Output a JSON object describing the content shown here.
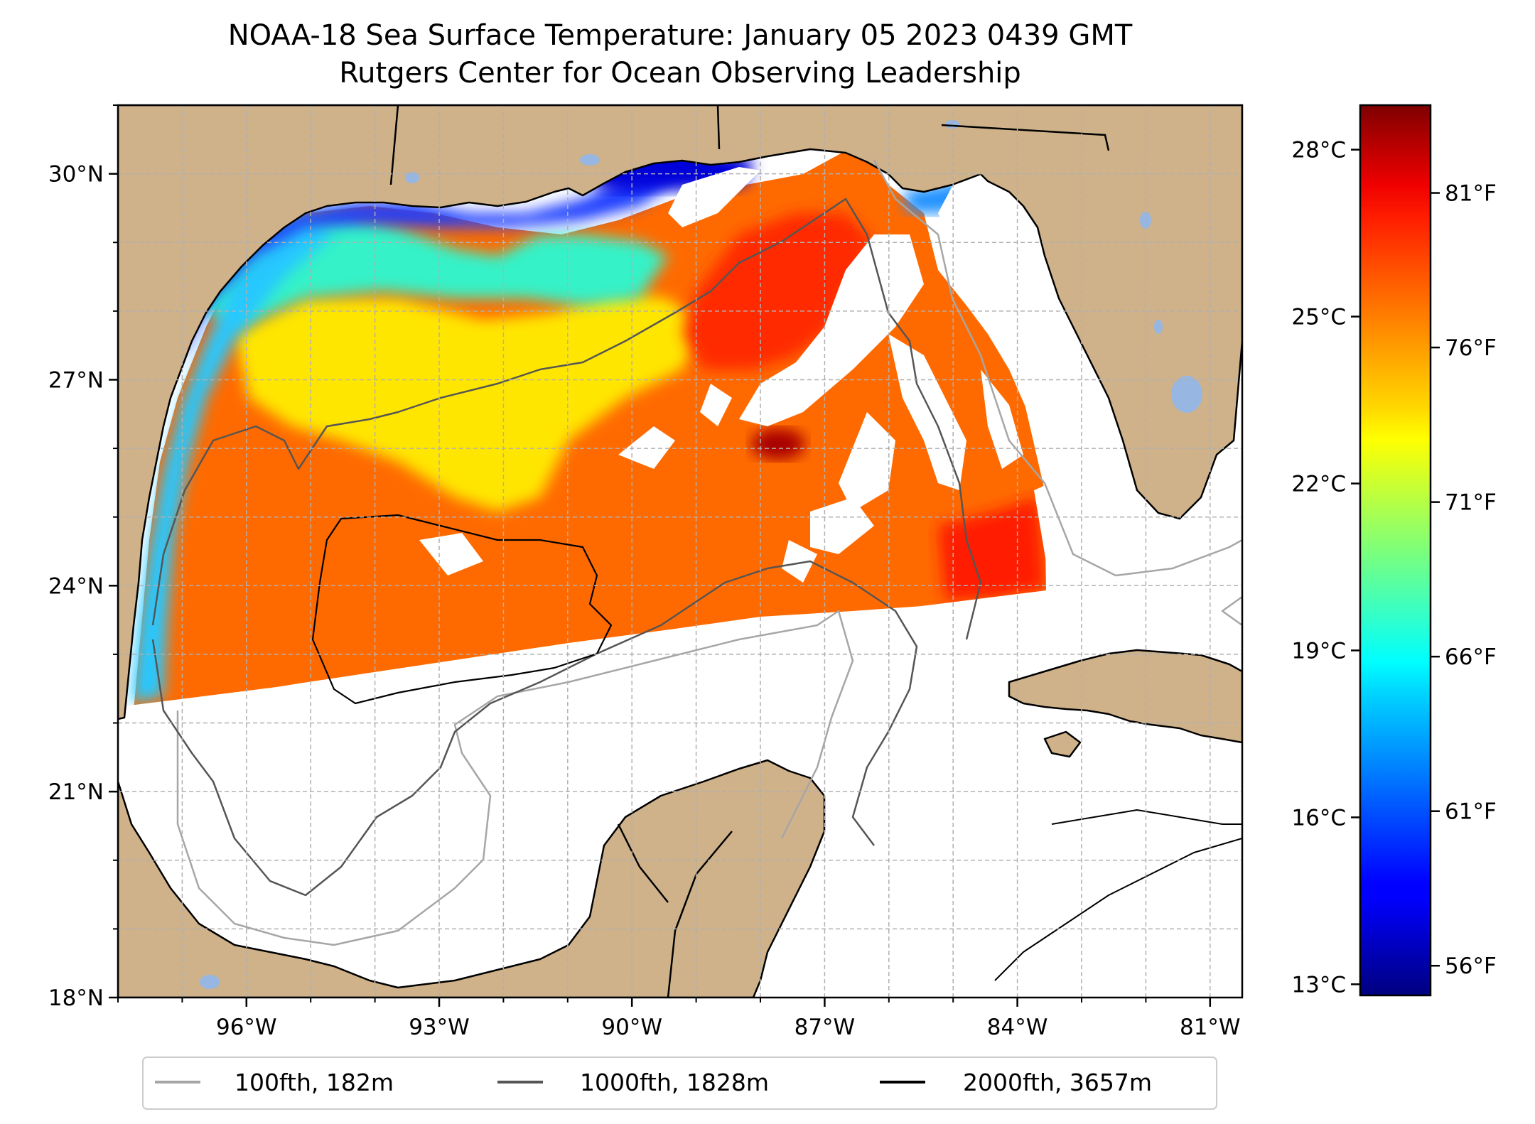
{
  "title": {
    "line1": "NOAA-18 Sea Surface Temperature: January 05 2023 0439 GMT",
    "line2": "Rutgers Center for Ocean Observing Leadership"
  },
  "map": {
    "lon_range": [
      -98.0,
      -80.5
    ],
    "lat_range": [
      18.0,
      31.0
    ],
    "lon_ticks": [
      {
        "value": -96,
        "label": "96°W"
      },
      {
        "value": -93,
        "label": "93°W"
      },
      {
        "value": -90,
        "label": "90°W"
      },
      {
        "value": -87,
        "label": "87°W"
      },
      {
        "value": -84,
        "label": "84°W"
      },
      {
        "value": -81,
        "label": "81°W"
      }
    ],
    "lat_ticks": [
      {
        "value": 18,
        "label": "18°N"
      },
      {
        "value": 21,
        "label": "21°N"
      },
      {
        "value": 24,
        "label": "24°N"
      },
      {
        "value": 27,
        "label": "27°N"
      },
      {
        "value": 30,
        "label": "30°N"
      }
    ],
    "gridlines": true,
    "land_color": "#cfb28a",
    "ocean_color": "#ffffff",
    "lake_color": "#97b6e1"
  },
  "colorbar": {
    "colormap": "jet",
    "range_c": [
      12.8,
      28.8
    ],
    "celsius_ticks": [
      {
        "value": 13,
        "label": "13°C"
      },
      {
        "value": 16,
        "label": "16°C"
      },
      {
        "value": 19,
        "label": "19°C"
      },
      {
        "value": 22,
        "label": "22°C"
      },
      {
        "value": 25,
        "label": "25°C"
      },
      {
        "value": 28,
        "label": "28°C"
      }
    ],
    "fahrenheit_ticks": [
      {
        "value": 56,
        "label": "56°F"
      },
      {
        "value": 61,
        "label": "61°F"
      },
      {
        "value": 66,
        "label": "66°F"
      },
      {
        "value": 71,
        "label": "71°F"
      },
      {
        "value": 76,
        "label": "76°F"
      },
      {
        "value": 81,
        "label": "81°F"
      }
    ]
  },
  "legend": {
    "items": [
      {
        "label": "100fth, 182m",
        "color": "#a6a6a6"
      },
      {
        "label": "1000fth, 1828m",
        "color": "#555555"
      },
      {
        "label": "2000fth, 3657m",
        "color": "#000000"
      }
    ]
  }
}
